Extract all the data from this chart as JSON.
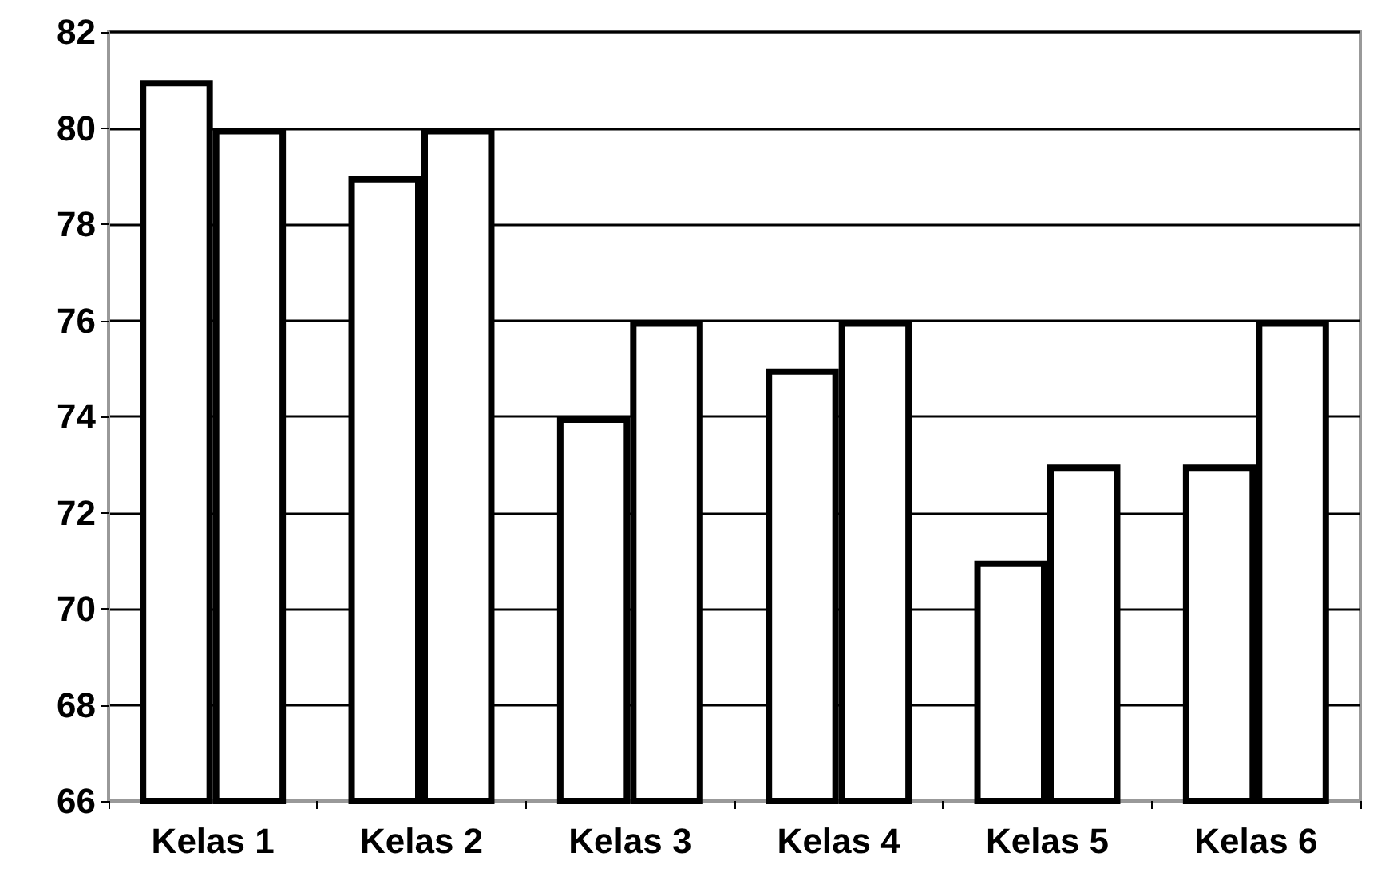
{
  "chart_data": {
    "type": "bar",
    "categories": [
      "Kelas 1",
      "Kelas 2",
      "Kelas 3",
      "Kelas 4",
      "Kelas 5",
      "Kelas 6"
    ],
    "series": [
      {
        "color": "#ffffff",
        "values": [
          81,
          79,
          74,
          75,
          71,
          73
        ]
      },
      {
        "color": "#ffffff",
        "values": [
          80,
          80,
          76,
          76,
          73,
          76
        ]
      }
    ],
    "ylim": [
      66,
      82
    ],
    "yticks": [
      66,
      68,
      70,
      72,
      74,
      76,
      78,
      80,
      82
    ],
    "grid": "y"
  }
}
